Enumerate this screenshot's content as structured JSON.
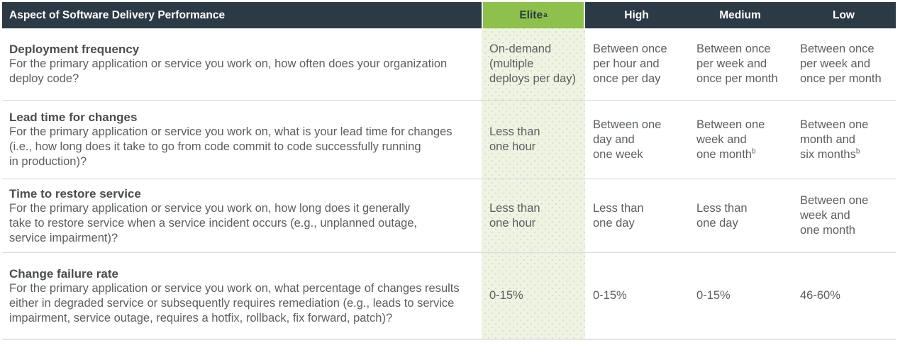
{
  "colors": {
    "header_bg": "#2c3a46",
    "header_text": "#ffffff",
    "elite_header_bg": "#8ec04c",
    "elite_header_text": "#2c3a46",
    "elite_column_bg": "#eef3e3",
    "elite_column_dot": "#d7e3bf",
    "title_text": "#4b4d4f",
    "body_text": "#5c5e60",
    "separator": "#dadada"
  },
  "table": {
    "header": {
      "aspect_label": "Aspect of Software Delivery Performance",
      "columns": [
        {
          "label": "Elite",
          "sup": "a"
        },
        {
          "label": "High",
          "sup": ""
        },
        {
          "label": "Medium",
          "sup": ""
        },
        {
          "label": "Low",
          "sup": ""
        }
      ]
    },
    "rows": [
      {
        "title": "Deployment frequency",
        "description": "For the primary application or service you work on, how often does your organization\ndeploy code?",
        "cells": [
          {
            "text": "On-demand\n(multiple\ndeploys per day)",
            "sup": ""
          },
          {
            "text": "Between once\nper hour and\nonce per day",
            "sup": ""
          },
          {
            "text": "Between once\nper week and\nonce per month",
            "sup": ""
          },
          {
            "text": "Between once\nper week and\nonce per month",
            "sup": ""
          }
        ]
      },
      {
        "title": "Lead time for changes",
        "description": "For the primary application or service you work on, what is your lead time for changes\n(i.e., how long does it take to go from code commit to code successfully running\nin production)?",
        "cells": [
          {
            "text": "Less than\none hour",
            "sup": ""
          },
          {
            "text": "Between one\nday and\none week",
            "sup": ""
          },
          {
            "text": "Between one\nweek and\none month",
            "sup": "b"
          },
          {
            "text": "Between one\nmonth and\nsix months",
            "sup": "b"
          }
        ]
      },
      {
        "title": "Time to restore service",
        "description": "For the primary application or service you work on, how long does it generally\ntake to restore service when a service incident occurs (e.g., unplanned outage,\nservice impairment)?",
        "cells": [
          {
            "text": "Less than\none hour",
            "sup": ""
          },
          {
            "text": "Less than\none day",
            "sup": ""
          },
          {
            "text": "Less than\none day",
            "sup": ""
          },
          {
            "text": "Between one\nweek and\none month",
            "sup": ""
          }
        ]
      },
      {
        "title": "Change failure rate",
        "description": "For the primary application or service you work on, what percentage of changes results\neither in degraded service or subsequently requires remediation (e.g., leads to service\nimpairment, service outage, requires a hotfix, rollback, fix forward, patch)?",
        "cells": [
          {
            "text": "0-15%",
            "sup": ""
          },
          {
            "text": "0-15%",
            "sup": ""
          },
          {
            "text": "0-15%",
            "sup": ""
          },
          {
            "text": "46-60%",
            "sup": ""
          }
        ]
      }
    ]
  }
}
